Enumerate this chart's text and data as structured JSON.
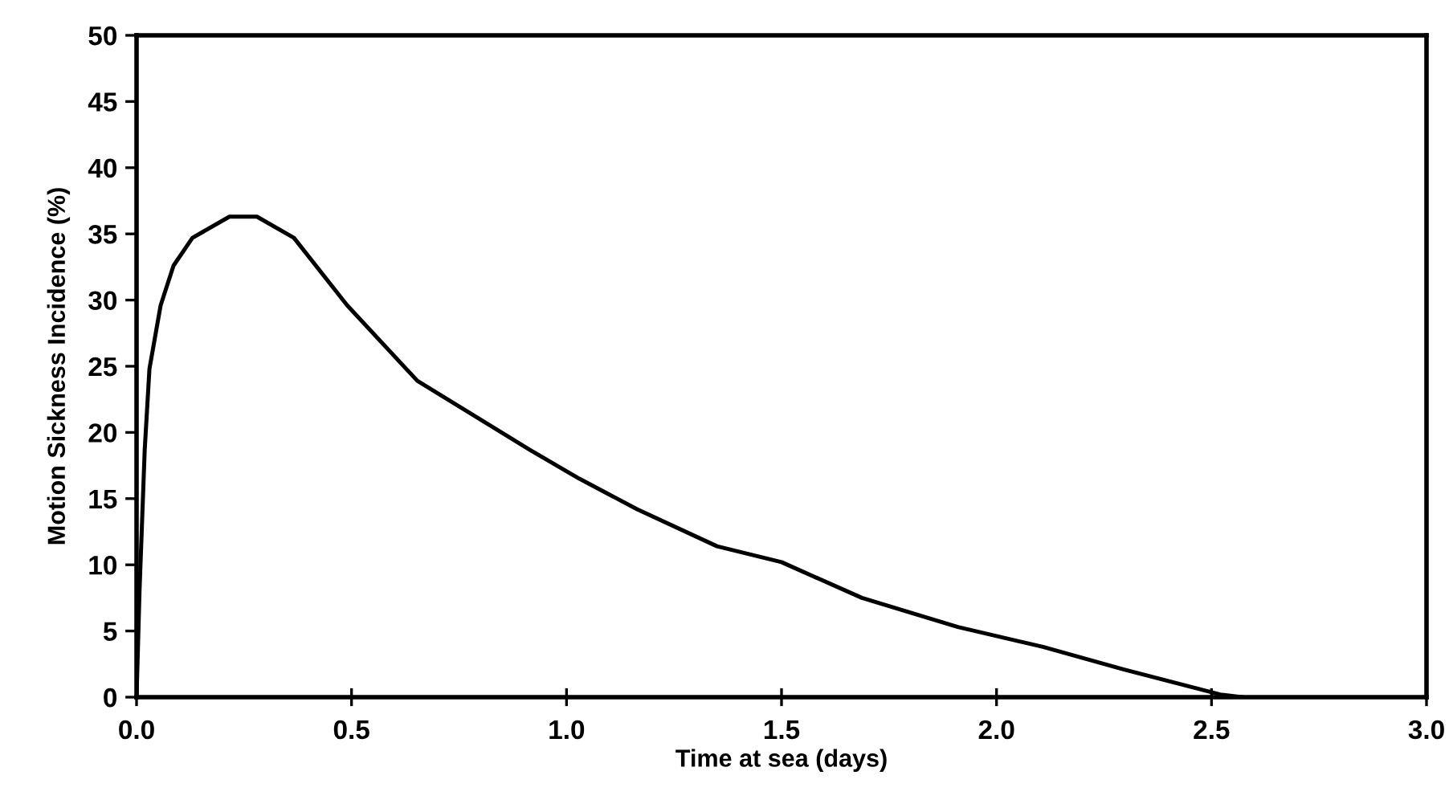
{
  "chart_data": {
    "type": "line",
    "xlabel": "Time at sea (days)",
    "ylabel": "Motion Sickness Incidence (%)",
    "xlim": [
      0,
      3
    ],
    "ylim": [
      0,
      50
    ],
    "xticks": [
      {
        "value": 0,
        "label": "0.0"
      },
      0.5,
      {
        "value": 1,
        "label": "1.0"
      },
      1.5,
      {
        "value": 2,
        "label": "2.0"
      },
      2.5,
      {
        "value": 3,
        "label": "3.0"
      }
    ],
    "yticks": [
      0,
      5,
      10,
      15,
      20,
      25,
      30,
      35,
      40,
      45,
      50
    ],
    "grid": false,
    "legend": false,
    "marker": "none",
    "line_style": "solid",
    "series": [
      {
        "color": "#000000",
        "x": [
          0,
          0.007,
          0.019,
          0.03,
          0.056,
          0.086,
          0.13,
          0.216,
          0.28,
          0.366,
          0.49,
          0.653,
          0.914,
          1.03,
          1.164,
          1.35,
          1.5,
          1.687,
          1.91,
          2.108,
          2.295,
          2.52,
          2.57
        ],
        "values": [
          0,
          8.1,
          18.7,
          24.8,
          29.6,
          32.6,
          34.7,
          36.3,
          36.3,
          34.7,
          29.6,
          23.9,
          18.7,
          16.5,
          14.2,
          11.4,
          10.2,
          7.5,
          5.3,
          3.8,
          2.1,
          0.2,
          0
        ]
      }
    ]
  }
}
